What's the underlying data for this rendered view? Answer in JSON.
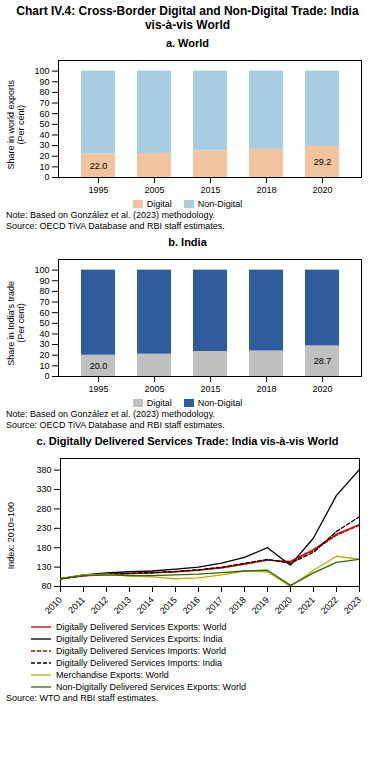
{
  "title": "Chart IV.4: Cross-Border Digital and Non-Digital Trade: India vis-à-vis World",
  "chart_data": [
    {
      "type": "bar",
      "title": "a. World",
      "stacked": true,
      "categories": [
        "1995",
        "2005",
        "2015",
        "2018",
        "2020"
      ],
      "series": [
        {
          "name": "Digital",
          "color": "#f2c49e",
          "values": [
            22.0,
            22.5,
            25.0,
            26.5,
            29.2
          ],
          "value_labels": [
            "22.0",
            null,
            null,
            null,
            "29.2"
          ]
        },
        {
          "name": "Non-Digital",
          "color": "#a8cde0",
          "values": [
            78.0,
            77.5,
            75.0,
            73.5,
            70.8
          ]
        }
      ],
      "ylabel": "Share in world exports\n(Per cent)",
      "ylim": [
        0,
        110
      ],
      "yticks": [
        0,
        10,
        20,
        30,
        40,
        50,
        60,
        70,
        80,
        90,
        100
      ],
      "grid": false,
      "legend": "bottom",
      "annotations": [
        "Note: Based on González et al. (2023) methodology.",
        "Source: OECD TiVA Database and RBI staff estimates."
      ]
    },
    {
      "type": "bar",
      "title": "b. India",
      "stacked": true,
      "categories": [
        "1995",
        "2005",
        "2015",
        "2018",
        "2020"
      ],
      "series": [
        {
          "name": "Digital",
          "color": "#c0c0c0",
          "values": [
            20.0,
            21.0,
            23.5,
            24.0,
            28.7
          ],
          "value_labels": [
            "20.0",
            null,
            null,
            null,
            "28.7"
          ]
        },
        {
          "name": "Non-Digital",
          "color": "#2e5c9e",
          "values": [
            80.0,
            79.0,
            76.5,
            76.0,
            71.3
          ]
        }
      ],
      "ylabel": "Share in India's trade\n(Per cent)",
      "ylim": [
        0,
        110
      ],
      "yticks": [
        0,
        10,
        20,
        30,
        40,
        50,
        60,
        70,
        80,
        90,
        100
      ],
      "grid": false,
      "legend": "bottom",
      "annotations": [
        "Note: Based on González et al. (2023) methodology.",
        "Source: OECD TiVA Database and RBI staff estimates."
      ]
    },
    {
      "type": "line",
      "title": "c. Digitally Delivered Services Trade: India vis-à-vis World",
      "x": [
        2010,
        2011,
        2012,
        2013,
        2014,
        2015,
        2016,
        2017,
        2018,
        2019,
        2020,
        2021,
        2022,
        2023
      ],
      "series": [
        {
          "name": "Digitally Delivered Services Exports: World",
          "color": "#cc0000",
          "line_style": "solid",
          "values": [
            100,
            108,
            112,
            113,
            115,
            118,
            122,
            128,
            138,
            148,
            145,
            175,
            215,
            240
          ]
        },
        {
          "name": "Digitally Delivered Services Exports: India",
          "color": "#000000",
          "line_style": "solid",
          "values": [
            100,
            110,
            115,
            118,
            120,
            125,
            130,
            140,
            155,
            180,
            135,
            205,
            315,
            382
          ]
        },
        {
          "name": "Digitally Delivered Services Imports: World",
          "color": "#cc0000",
          "line_style": "dashed",
          "values": [
            100,
            107,
            111,
            113,
            115,
            118,
            122,
            128,
            138,
            148,
            143,
            172,
            212,
            238
          ]
        },
        {
          "name": "Digitally Delivered Services Imports: India",
          "color": "#000000",
          "line_style": "dashed",
          "values": [
            100,
            108,
            112,
            114,
            116,
            119,
            123,
            130,
            140,
            150,
            140,
            168,
            222,
            260
          ]
        },
        {
          "name": "Merchandise Exports: World",
          "color": "#c8a800",
          "line_style": "solid",
          "values": [
            100,
            110,
            112,
            107,
            105,
            100,
            102,
            110,
            120,
            118,
            80,
            122,
            158,
            150
          ]
        },
        {
          "name": "Non-Digitally Delivered Services Exports: World",
          "color": "#2d6a00",
          "line_style": "solid",
          "values": [
            100,
            108,
            110,
            108,
            108,
            110,
            112,
            116,
            120,
            122,
            83,
            115,
            142,
            150
          ]
        }
      ],
      "xlim": [
        2010,
        2023
      ],
      "xticks": [
        2010,
        2011,
        2012,
        2013,
        2014,
        2015,
        2016,
        2017,
        2018,
        2019,
        2020,
        2021,
        2022,
        2023
      ],
      "ylabel": "Index: 2010=100",
      "ylim": [
        80,
        410
      ],
      "yticks": [
        80,
        130,
        180,
        230,
        280,
        330,
        380
      ],
      "grid": false,
      "legend": "bottom",
      "annotations": [
        "Source: WTO and RBI staff estimates."
      ]
    }
  ]
}
